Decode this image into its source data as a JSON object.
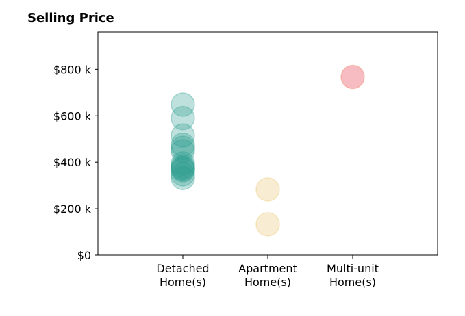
{
  "chart_data": {
    "type": "scatter",
    "title": "Selling Price",
    "xlabel": "",
    "ylabel": "",
    "categories": [
      [
        "Detached",
        "Home(s)"
      ],
      [
        "Apartment",
        "Home(s)"
      ],
      [
        "Multi-unit",
        "Home(s)"
      ]
    ],
    "ylim": [
      0,
      960000
    ],
    "yticks": [
      {
        "value": 0,
        "label": "$0"
      },
      {
        "value": 200000,
        "label": "$200 k"
      },
      {
        "value": 400000,
        "label": "$400 k"
      },
      {
        "value": 600000,
        "label": "$600 k"
      },
      {
        "value": 800000,
        "label": "$800 k"
      }
    ],
    "grid": false,
    "series": [
      {
        "category_index": 0,
        "color": "#2a9d8f",
        "values": [
          648000,
          590000,
          515000,
          475000,
          462000,
          448000,
          395000,
          383000,
          375000,
          372000,
          365000,
          348000,
          332000
        ]
      },
      {
        "category_index": 1,
        "color": "#e9c46a",
        "values": [
          283000,
          133000
        ]
      },
      {
        "category_index": 2,
        "color": "#e76f51",
        "point_color": "#f4a0a6",
        "values": [
          767000
        ]
      }
    ]
  }
}
